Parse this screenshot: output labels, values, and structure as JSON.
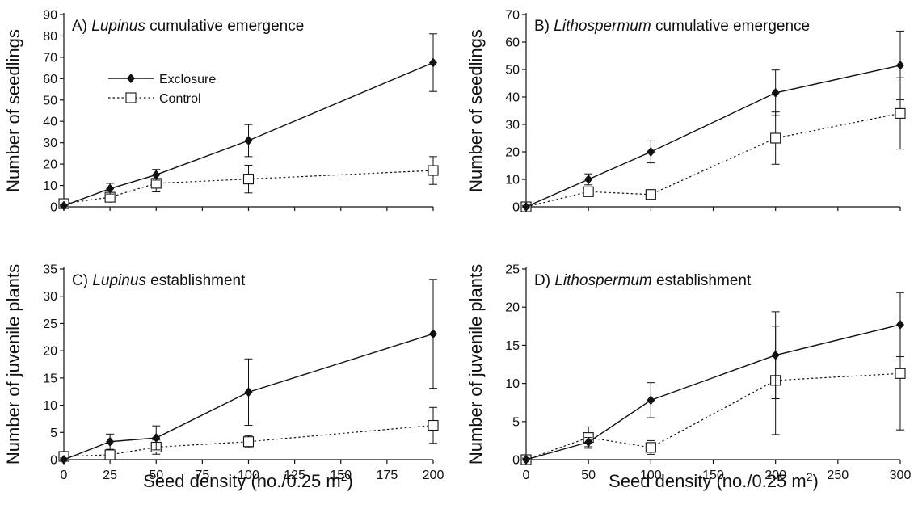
{
  "legend": [
    {
      "label": "Exclosure",
      "style": "solid",
      "marker": "filled-diamond"
    },
    {
      "label": "Control",
      "style": "dotted",
      "marker": "open-square"
    }
  ],
  "shared_xlabel": {
    "pre": "Seed density (no./0.25 m",
    "sup": "2",
    "post": ")"
  },
  "chart_data": [
    {
      "type": "line",
      "panel_label": "A)",
      "title_italic": "Lupinus",
      "title_rest": " cumulative emergence",
      "ylabel": "Number of seedlings",
      "xlim": [
        0,
        200
      ],
      "xticks": [
        0,
        25,
        50,
        75,
        100,
        125,
        150,
        175,
        200
      ],
      "ylim": [
        0,
        90
      ],
      "yticks": [
        0,
        10,
        20,
        30,
        40,
        50,
        60,
        70,
        80,
        90
      ],
      "show_xtick_labels": false,
      "series": [
        {
          "name": "Exclosure",
          "x": [
            0,
            25,
            50,
            100,
            200
          ],
          "y": [
            0.5,
            8.5,
            15,
            31,
            67.5
          ],
          "err": [
            0.5,
            2.5,
            2.5,
            7.5,
            13.5
          ]
        },
        {
          "name": "Control",
          "x": [
            0,
            25,
            50,
            100,
            200
          ],
          "y": [
            1.5,
            4.5,
            11,
            13,
            17
          ],
          "err": [
            1.5,
            2,
            4,
            6.5,
            6.5
          ]
        }
      ]
    },
    {
      "type": "line",
      "panel_label": "B)",
      "title_italic": "Lithospermum",
      "title_rest": " cumulative emergence",
      "ylabel": "Number of seedlings",
      "xlim": [
        0,
        300
      ],
      "xticks": [
        0,
        50,
        100,
        150,
        200,
        250,
        300
      ],
      "ylim": [
        0,
        70
      ],
      "yticks": [
        0,
        10,
        20,
        30,
        40,
        50,
        60,
        70
      ],
      "show_xtick_labels": false,
      "series": [
        {
          "name": "Exclosure",
          "x": [
            0,
            50,
            100,
            200,
            300
          ],
          "y": [
            0,
            10,
            20,
            41.5,
            51.5
          ],
          "err": [
            0.5,
            2,
            4,
            8.3,
            12.5
          ]
        },
        {
          "name": "Control",
          "x": [
            0,
            50,
            100,
            200,
            300
          ],
          "y": [
            0,
            5.5,
            4.5,
            25,
            34
          ],
          "err": [
            0.5,
            1.5,
            1,
            9.5,
            13
          ]
        }
      ]
    },
    {
      "type": "line",
      "panel_label": "C)",
      "title_italic": "Lupinus",
      "title_rest": " establishment",
      "ylabel": "Number of juvenile plants",
      "xlim": [
        0,
        200
      ],
      "xticks": [
        0,
        25,
        50,
        75,
        100,
        125,
        150,
        175,
        200
      ],
      "ylim": [
        0,
        35
      ],
      "yticks": [
        0,
        5,
        10,
        15,
        20,
        25,
        30,
        35
      ],
      "show_xtick_labels": true,
      "series": [
        {
          "name": "Exclosure",
          "x": [
            0,
            25,
            50,
            100,
            200
          ],
          "y": [
            0,
            3.3,
            4,
            12.4,
            23.1
          ],
          "err": [
            0.3,
            1.4,
            2.2,
            6.1,
            10
          ]
        },
        {
          "name": "Control",
          "x": [
            0,
            25,
            50,
            100,
            200
          ],
          "y": [
            0.6,
            0.9,
            2.3,
            3.3,
            6.3
          ],
          "err": [
            0.4,
            0.6,
            1.3,
            1.1,
            3.3
          ]
        }
      ]
    },
    {
      "type": "line",
      "panel_label": "D)",
      "title_italic": "Lithospermum",
      "title_rest": " establishment",
      "ylabel": "Number of juvenile plants",
      "xlim": [
        0,
        300
      ],
      "xticks": [
        0,
        50,
        100,
        150,
        200,
        250,
        300
      ],
      "ylim": [
        0,
        25
      ],
      "yticks": [
        0,
        5,
        10,
        15,
        20,
        25
      ],
      "show_xtick_labels": true,
      "series": [
        {
          "name": "Exclosure",
          "x": [
            0,
            50,
            100,
            200,
            300
          ],
          "y": [
            0,
            2.3,
            7.8,
            13.7,
            17.7
          ],
          "err": [
            0.2,
            0.6,
            2.3,
            5.7,
            4.2
          ]
        },
        {
          "name": "Control",
          "x": [
            0,
            50,
            100,
            200,
            300
          ],
          "y": [
            0,
            2.9,
            1.6,
            10.4,
            11.3
          ],
          "err": [
            0.2,
            1.4,
            0.9,
            7.1,
            7.4
          ]
        }
      ]
    }
  ],
  "colors": {
    "ink": "#111111",
    "background": "#ffffff"
  }
}
